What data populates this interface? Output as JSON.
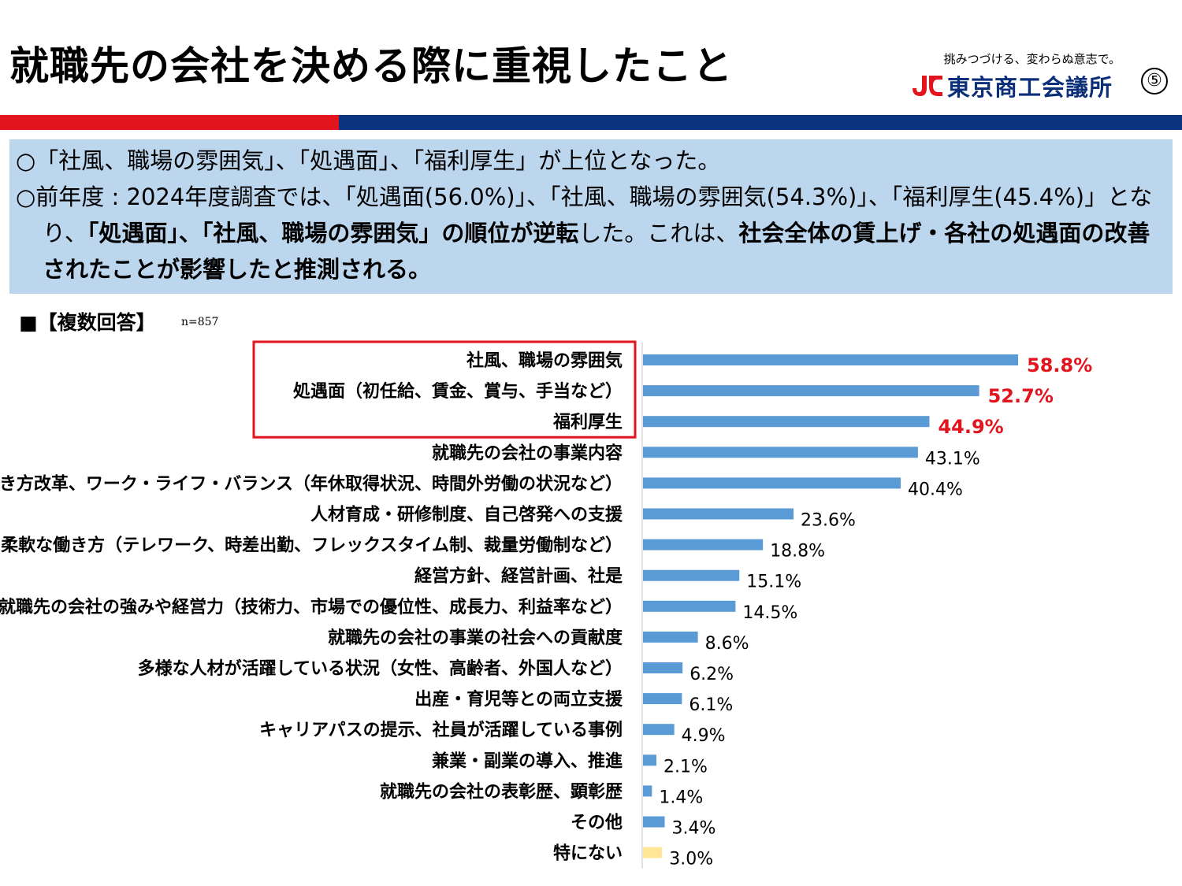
{
  "header": {
    "title": "就職先の会社を決める際に重視したこと",
    "tagline": "挑みつづける、変わらぬ意志で。",
    "org_name": "東京商工会議所",
    "page_number": "⑤"
  },
  "summary": {
    "line1": "○「社風、職場の雰囲気」、「処遇面」、「福利厚生」が上位となった。",
    "line2_a": "○前年度 : 2024年度調査では、「処遇面(56.0%)」、「社風、職場の雰囲気(54.3%)」、「福利厚生(45.4%)」となり、",
    "line2_b": "「処遇面」、「社風、職場の雰囲気」の順位が逆転",
    "line2_c": "した。これは、",
    "line2_d": "社会全体の賃上げ・各社の処遇面の改善されたことが影響したと推測される。"
  },
  "section": {
    "label": "■【複数回答】",
    "n": "n=857"
  },
  "colors": {
    "bar": "#5b9bd5",
    "bar_none": "#ffe699",
    "highlight": "#e2141e"
  },
  "chart_data": {
    "type": "bar",
    "orientation": "horizontal",
    "categories": [
      "社風、職場の雰囲気",
      "処遇面（初任給、賃金、賞与、手当など）",
      "福利厚生",
      "就職先の会社の事業内容",
      "働き方改革、ワーク・ライフ・バランス（年休取得状況、時間外労働の状況など）",
      "人材育成・研修制度、自己啓発への支援",
      "柔軟な働き方（テレワーク、時差出勤、フレックスタイム制、裁量労働制など）",
      "経営方針、経営計画、社是",
      "就職先の会社の強みや経営力（技術力、市場での優位性、成長力、利益率など）",
      "就職先の会社の事業の社会への貢献度",
      "多様な人材が活躍している状況（女性、高齢者、外国人など）",
      "出産・育児等との両立支援",
      "キャリアパスの提示、社員が活躍している事例",
      "兼業・副業の導入、推進",
      "就職先の会社の表彰歴、顕彰歴",
      "その他",
      "特にない"
    ],
    "values": [
      58.8,
      52.7,
      44.9,
      43.1,
      40.4,
      23.6,
      18.8,
      15.1,
      14.5,
      8.6,
      6.2,
      6.1,
      4.9,
      2.1,
      1.4,
      3.4,
      3.0
    ],
    "value_labels": [
      "58.8%",
      "52.7%",
      "44.9%",
      "43.1%",
      "40.4%",
      "23.6%",
      "18.8%",
      "15.1%",
      "14.5%",
      "8.6%",
      "6.2%",
      "6.1%",
      "4.9%",
      "2.1%",
      "1.4%",
      "3.4%",
      "3.0%"
    ],
    "highlighted": [
      0,
      1,
      2
    ],
    "xlim": [
      0,
      70
    ],
    "unit": "%"
  }
}
